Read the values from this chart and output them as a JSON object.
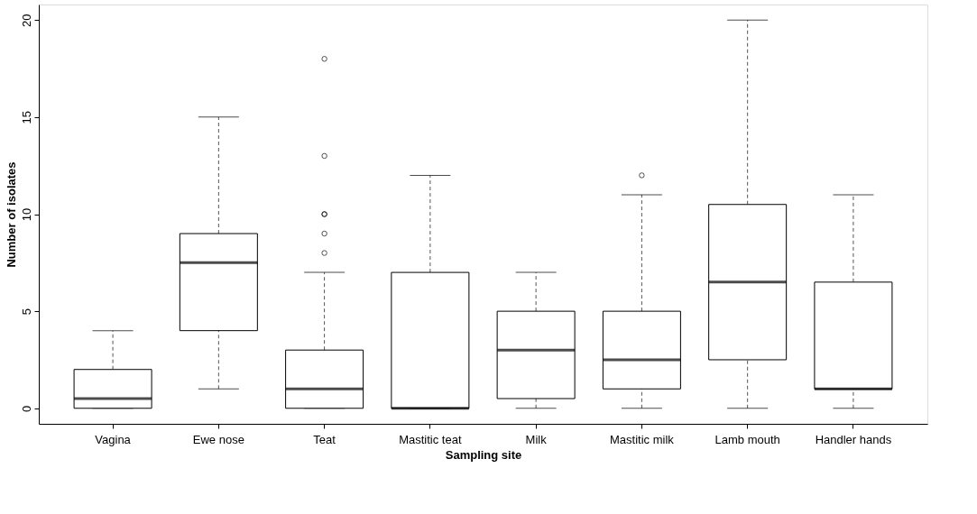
{
  "chart_data": {
    "type": "box",
    "xlabel": "Sampling site",
    "ylabel": "Number of isolates",
    "categories": [
      "Vagina",
      "Ewe nose",
      "Teat",
      "Mastitic teat",
      "Milk",
      "Mastitic milk",
      "Lamb mouth",
      "Handler hands"
    ],
    "boxes": [
      {
        "low": 0,
        "q1": 0,
        "median": 0.5,
        "q3": 2,
        "high": 4
      },
      {
        "low": 1,
        "q1": 4,
        "median": 7.5,
        "q3": 9,
        "high": 15
      },
      {
        "low": 0,
        "q1": 0,
        "median": 1,
        "q3": 3,
        "high": 7,
        "outliers": [
          8,
          9,
          10,
          10,
          13,
          18
        ]
      },
      {
        "low": 0,
        "q1": 0,
        "median": 0,
        "q3": 7,
        "high": 12
      },
      {
        "low": 0,
        "q1": 0.5,
        "median": 3,
        "q3": 5,
        "high": 7
      },
      {
        "low": 0,
        "q1": 1,
        "median": 2.5,
        "q3": 5,
        "high": 11,
        "outliers": [
          12
        ]
      },
      {
        "low": 0,
        "q1": 2.5,
        "median": 6.5,
        "q3": 10.5,
        "high": 20
      },
      {
        "low": 0,
        "q1": 1,
        "median": 1,
        "q3": 6.5,
        "high": 11
      }
    ],
    "ylim": [
      -0.8,
      20.8
    ],
    "yticks": [
      0,
      5,
      10,
      15,
      20
    ]
  }
}
